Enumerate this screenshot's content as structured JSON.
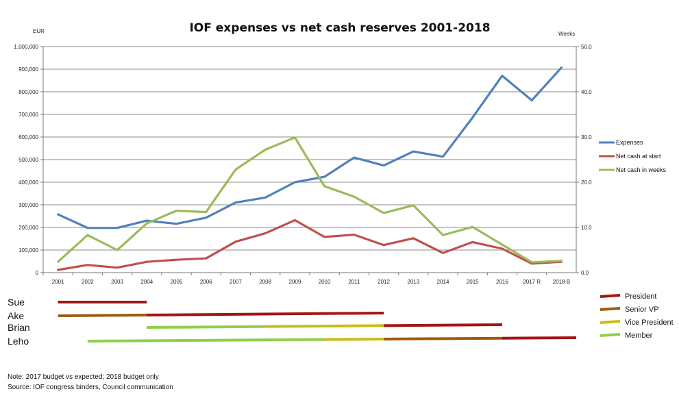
{
  "chart_data": {
    "type": "line",
    "title": "IOF expenses vs net cash reserves 2001-2018",
    "left_axis_unit": "EUR",
    "right_axis_unit": "Weeks",
    "categories": [
      "2001",
      "2002",
      "2003",
      "2004",
      "2005",
      "2006",
      "2007",
      "2008",
      "2009",
      "2010",
      "2011",
      "2012",
      "2013",
      "2014",
      "2015",
      "2016",
      "2017 R",
      "2018 B"
    ],
    "y_left_ticks": [
      "0",
      "100,000",
      "200,000",
      "300,000",
      "400,000",
      "500,000",
      "600,000",
      "700,000",
      "800,000",
      "900,000",
      "1,000,000"
    ],
    "y_right_ticks": [
      "0.0",
      "10.0",
      "20.0",
      "30.0",
      "40.0",
      "50.0"
    ],
    "ylim_left": [
      0,
      1000000
    ],
    "ylim_right": [
      0,
      50
    ],
    "grid": true,
    "legend_position": "right",
    "series": [
      {
        "name": "Expenses",
        "axis": "left",
        "color": "#4f81bd",
        "values": [
          258000,
          198000,
          198000,
          230000,
          216000,
          243000,
          310000,
          332000,
          400000,
          424000,
          509000,
          474000,
          536000,
          513000,
          686000,
          871000,
          762000,
          907000
        ]
      },
      {
        "name": "Net cash at start",
        "axis": "left",
        "color": "#c0504d",
        "values": [
          12000,
          34000,
          22000,
          48000,
          57000,
          63000,
          137000,
          174000,
          232000,
          158000,
          168000,
          122000,
          152000,
          87000,
          135000,
          106000,
          40000,
          48000
        ]
      },
      {
        "name": "Net cash in weeks",
        "axis": "right",
        "color": "#9bbb59",
        "values": [
          2.4,
          8.3,
          5.0,
          10.9,
          13.7,
          13.4,
          22.8,
          27.2,
          29.9,
          19.1,
          16.8,
          13.2,
          14.9,
          8.3,
          10.1,
          6.2,
          2.3,
          2.6
        ]
      }
    ],
    "tenure": {
      "people": [
        {
          "name": "Sue",
          "segments": [
            {
              "role": "President",
              "start": 2001,
              "end": 2004
            }
          ]
        },
        {
          "name": "Ake",
          "segments": [
            {
              "role": "Senior VP",
              "start": 2001,
              "end": 2004
            },
            {
              "role": "President",
              "start": 2004,
              "end": 2012
            }
          ]
        },
        {
          "name": "Brian",
          "segments": [
            {
              "role": "Member",
              "start": 2004,
              "end": 2008
            },
            {
              "role": "Vice President",
              "start": 2008,
              "end": 2012
            },
            {
              "role": "President",
              "start": 2012,
              "end": 2016
            }
          ]
        },
        {
          "name": "Leho",
          "segments": [
            {
              "role": "Member",
              "start": 2002,
              "end": 2010
            },
            {
              "role": "Vice President",
              "start": 2010,
              "end": 2012
            },
            {
              "role": "Senior VP",
              "start": 2012,
              "end": 2016
            },
            {
              "role": "President",
              "start": 2016,
              "end": 2018.5
            }
          ]
        }
      ],
      "roles": [
        {
          "name": "President",
          "color": "#a31515"
        },
        {
          "name": "Senior VP",
          "color": "#9c5a0d"
        },
        {
          "name": "Vice President",
          "color": "#c9bd12"
        },
        {
          "name": "Member",
          "color": "#8fcf4a"
        }
      ]
    }
  },
  "notes": {
    "line1": "Note: 2017 budget vs expected; 2018 budget only",
    "line2": "Source: IOF congress binders, Council communication"
  }
}
